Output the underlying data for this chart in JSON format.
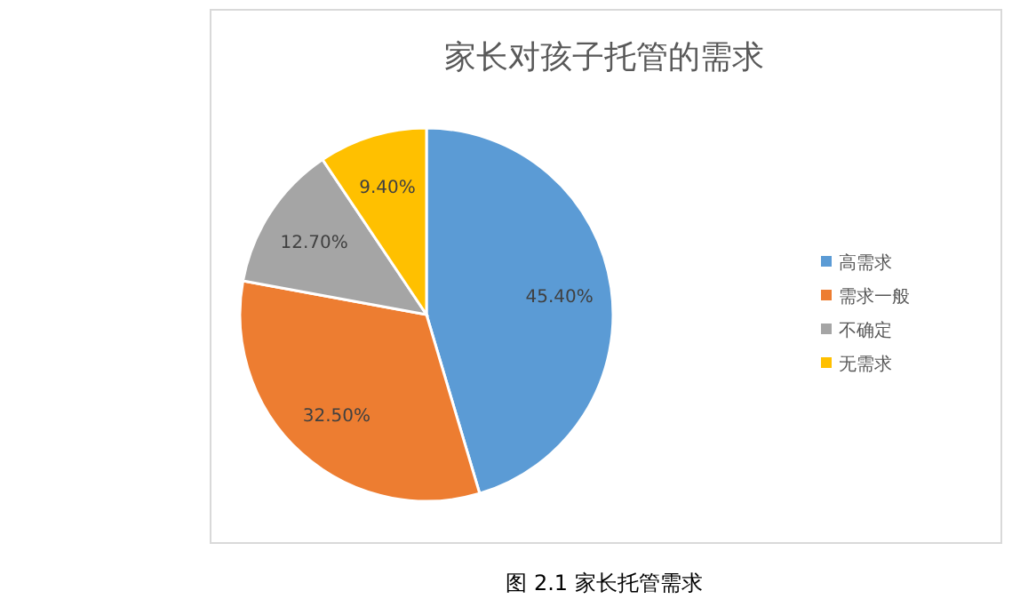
{
  "chart_data": {
    "type": "pie",
    "title": "家长对孩子托管的需求",
    "categories": [
      "高需求",
      "需求一般",
      "不确定",
      "无需求"
    ],
    "values": [
      45.4,
      32.5,
      12.7,
      9.4
    ],
    "colors": [
      "#5b9bd5",
      "#ed7d31",
      "#a5a5a5",
      "#ffc000"
    ],
    "value_labels": [
      "45.40%",
      "32.50%",
      "12.70%",
      "9.40%"
    ],
    "legend": "right",
    "annotations": [
      "图 2.1 家长托管需求"
    ]
  }
}
